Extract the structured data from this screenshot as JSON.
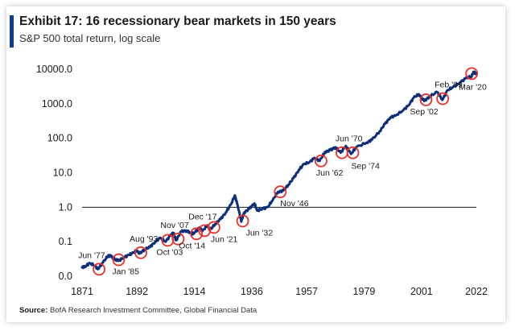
{
  "header": {
    "title": "Exhibit 17: 16 recessionary bear markets in 150 years",
    "subtitle": "S&P 500 total return, log scale"
  },
  "footer": {
    "source_label": "Source:",
    "source_text": "BofA Research Investment Committee, Global Financial Data"
  },
  "colors": {
    "accent": "#0b3f95",
    "line": "#0b2f7a",
    "marker": "#e8312a"
  },
  "chart_data": {
    "type": "line",
    "title": "Exhibit 17: 16 recessionary bear markets in 150 years",
    "subtitle": "S&P 500 total return, log scale",
    "xlabel": "",
    "ylabel": "",
    "y_scale": "log",
    "xlim": [
      1871,
      2022
    ],
    "ylim": [
      0.01,
      10000
    ],
    "x_ticks": [
      1871,
      1892,
      1914,
      1936,
      1957,
      1979,
      2001,
      2022
    ],
    "x_tick_labels": [
      "1871",
      "1892",
      "1914",
      "1936",
      "1957",
      "1979",
      "2001",
      "2022"
    ],
    "y_ticks": [
      0.01,
      0.1,
      1,
      10,
      100,
      1000,
      10000
    ],
    "y_tick_labels": [
      "0.0",
      "0.1",
      "1.0",
      "10.0",
      "100.0",
      "1000.0",
      "10000.0"
    ],
    "reference_line": 1,
    "grid": false,
    "legend": "none",
    "series": [
      {
        "x": [
          1871,
          1872.5,
          1874,
          1876,
          1877,
          1879,
          1881,
          1882,
          1884,
          1885,
          1887,
          1889,
          1890,
          1892,
          1893,
          1895,
          1897,
          1899,
          1901,
          1903,
          1905,
          1906,
          1907,
          1909,
          1911,
          1913,
          1914,
          1916,
          1917,
          1919,
          1920,
          1922,
          1924,
          1926,
          1928,
          1929.5,
          1930.5,
          1932,
          1933,
          1935,
          1937,
          1938,
          1940,
          1942,
          1944,
          1946,
          1948,
          1950,
          1952,
          1954,
          1956,
          1958,
          1960,
          1962,
          1964,
          1966,
          1968,
          1970,
          1972,
          1974,
          1976,
          1980,
          1982,
          1985,
          1987,
          1989,
          1991,
          1994,
          1996,
          1998,
          2000,
          2002,
          2004,
          2007,
          2009,
          2011,
          2013,
          2015,
          2018,
          2020,
          2021,
          2022
        ],
        "y": [
          0.018,
          0.02,
          0.024,
          0.02,
          0.016,
          0.025,
          0.04,
          0.038,
          0.03,
          0.028,
          0.035,
          0.042,
          0.045,
          0.056,
          0.045,
          0.06,
          0.07,
          0.1,
          0.13,
          0.1,
          0.16,
          0.18,
          0.11,
          0.2,
          0.21,
          0.17,
          0.18,
          0.26,
          0.2,
          0.3,
          0.22,
          0.33,
          0.45,
          0.7,
          1.2,
          2.2,
          1.2,
          0.38,
          0.7,
          0.9,
          1.3,
          0.8,
          0.9,
          1.0,
          1.6,
          2.8,
          3.0,
          4.5,
          7,
          12,
          18,
          20,
          27,
          22,
          40,
          45,
          55,
          38,
          60,
          35,
          55,
          75,
          90,
          160,
          260,
          400,
          450,
          650,
          900,
          1500,
          1900,
          1200,
          1600,
          2200,
          1300,
          2500,
          3000,
          3800,
          5500,
          6200,
          8200,
          7500
        ]
      }
    ],
    "markers": [
      {
        "label": "Jun '77",
        "x": 1877.5,
        "y": 0.016
      },
      {
        "label": "Jan '85",
        "x": 1885,
        "y": 0.03
      },
      {
        "label": "Aug '93",
        "x": 1893.5,
        "y": 0.048
      },
      {
        "label": "Oct '03",
        "x": 1903.8,
        "y": 0.11
      },
      {
        "label": "Nov '07",
        "x": 1907.8,
        "y": 0.12
      },
      {
        "label": "Oct '14",
        "x": 1914.8,
        "y": 0.17
      },
      {
        "label": "Dec '17",
        "x": 1917.9,
        "y": 0.21
      },
      {
        "label": "Jun '21",
        "x": 1921.5,
        "y": 0.26
      },
      {
        "label": "Jun '32",
        "x": 1932.5,
        "y": 0.4
      },
      {
        "label": "Nov '46",
        "x": 1946.9,
        "y": 2.8
      },
      {
        "label": "Jun '62",
        "x": 1962.5,
        "y": 22
      },
      {
        "label": "Jun '70",
        "x": 1970.5,
        "y": 38
      },
      {
        "label": "Sep '74",
        "x": 1974.7,
        "y": 38
      },
      {
        "label": "Sep '02",
        "x": 2002.7,
        "y": 1300
      },
      {
        "label": "Feb '09",
        "x": 2009.1,
        "y": 1400
      },
      {
        "label": "Mar '20",
        "x": 2020.2,
        "y": 7500
      }
    ]
  }
}
